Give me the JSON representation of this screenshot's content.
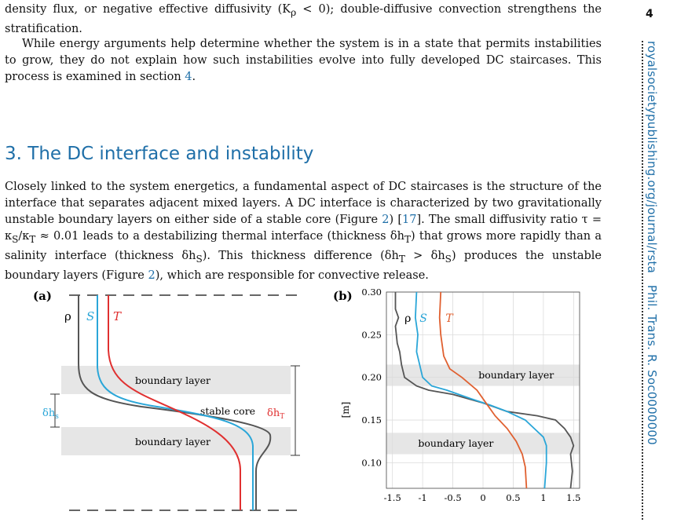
{
  "page_number": "4",
  "side_running_head": {
    "url": "royalsocietypublishing.org/journal/rsta",
    "journal": "Phil. Trans. R. Soc0000000"
  },
  "intro_paragraph": {
    "line1": "density flux, or negative effective diffusivity (K",
    "line1_sub": "ρ",
    "line1_end": " < 0); double-diffusive convection strengthens",
    "line2": "the stratification."
  },
  "energy_paragraph": {
    "text": "While energy arguments help determine whether the system is in a state that permits instabilities to grow, they do not explain how such instabilities evolve into fully developed DC staircases. This process is examined in section ",
    "section_ref": "4",
    "end": "."
  },
  "section": {
    "number": "3.",
    "title": "The DC interface and instability"
  },
  "interface_paragraph": {
    "part1": "Closely linked to the system energetics, a fundamental aspect of DC staircases is the structure of the interface that separates adjacent mixed layers. A DC interface is characterized by two gravitationally unstable boundary layers on either side of a stable core (Figure ",
    "fig_ref1": "2",
    "part2": ") [",
    "cite": "17",
    "part3": "]. The small diffusivity ratio τ = κ",
    "sub_S": "S",
    "part4": "/κ",
    "sub_T": "T",
    "part5": " ≈ 0.01 leads to a destabilizing thermal interface (thickness δh",
    "sub_T2": "T",
    "part6": ") that grows more rapidly than a salinity interface (thickness δh",
    "sub_S2": "S",
    "part7": "). This thickness difference (δh",
    "sub_T3": "T",
    "part8": " > δh",
    "sub_S3": "S",
    "part9": ") produces the unstable boundary layers (Figure ",
    "fig_ref2": "2",
    "part10": "), which are responsible for convective release."
  },
  "figure_a": {
    "panel_label": "(a)",
    "rho_label": "ρ",
    "s_label": "S",
    "t_label": "T",
    "boundary_layer_top": "boundary layer",
    "boundary_layer_bottom": "boundary layer",
    "stable_core": "stable core",
    "delta_hs": "δh",
    "delta_hs_sub": "s",
    "delta_ht": "δh",
    "delta_ht_sub": "T"
  },
  "figure_b": {
    "panel_label": "(b)",
    "rho_label": "ρ",
    "s_label": "S",
    "t_label": "T",
    "ylabel": "[m]",
    "boundary_layer_top": "boundary layer",
    "boundary_layer_bottom": "boundary layer",
    "yticks": [
      "0.30",
      "0.25",
      "0.20",
      "0.15",
      "0.10"
    ],
    "xticks": [
      "-1.5",
      "-1",
      "-0.5",
      "0",
      "0.5",
      "1",
      "1.5"
    ]
  },
  "chart_data": {
    "type": "line",
    "xlim": [
      -1.6,
      1.6
    ],
    "ylim": [
      0.07,
      0.3
    ],
    "grid": true,
    "bands_y": [
      [
        0.19,
        0.215
      ],
      [
        0.11,
        0.135
      ]
    ],
    "series": [
      {
        "name": "ρ",
        "color": "#555555",
        "points": [
          [
            -1.45,
            0.3
          ],
          [
            -1.45,
            0.28
          ],
          [
            -1.4,
            0.27
          ],
          [
            -1.45,
            0.26
          ],
          [
            -1.42,
            0.24
          ],
          [
            -1.38,
            0.23
          ],
          [
            -1.35,
            0.215
          ],
          [
            -1.3,
            0.2
          ],
          [
            -1.1,
            0.19
          ],
          [
            -0.9,
            0.185
          ],
          [
            -0.5,
            0.18
          ],
          [
            0.0,
            0.17
          ],
          [
            0.4,
            0.16
          ],
          [
            0.9,
            0.155
          ],
          [
            1.2,
            0.15
          ],
          [
            1.35,
            0.14
          ],
          [
            1.45,
            0.13
          ],
          [
            1.5,
            0.12
          ],
          [
            1.45,
            0.11
          ],
          [
            1.48,
            0.09
          ],
          [
            1.45,
            0.07
          ]
        ]
      },
      {
        "name": "S",
        "color": "#2aa6d8",
        "points": [
          [
            -1.1,
            0.3
          ],
          [
            -1.12,
            0.27
          ],
          [
            -1.08,
            0.25
          ],
          [
            -1.1,
            0.23
          ],
          [
            -1.05,
            0.215
          ],
          [
            -1.0,
            0.2
          ],
          [
            -0.85,
            0.19
          ],
          [
            -0.6,
            0.185
          ],
          [
            -0.2,
            0.175
          ],
          [
            0.1,
            0.168
          ],
          [
            0.4,
            0.16
          ],
          [
            0.7,
            0.15
          ],
          [
            0.85,
            0.14
          ],
          [
            1.0,
            0.13
          ],
          [
            1.05,
            0.12
          ],
          [
            1.05,
            0.1
          ],
          [
            1.02,
            0.07
          ]
        ]
      },
      {
        "name": "T",
        "color": "#e06030",
        "points": [
          [
            -0.7,
            0.3
          ],
          [
            -0.72,
            0.27
          ],
          [
            -0.7,
            0.25
          ],
          [
            -0.65,
            0.225
          ],
          [
            -0.55,
            0.21
          ],
          [
            -0.35,
            0.2
          ],
          [
            -0.1,
            0.185
          ],
          [
            0.05,
            0.17
          ],
          [
            0.2,
            0.155
          ],
          [
            0.4,
            0.14
          ],
          [
            0.55,
            0.125
          ],
          [
            0.65,
            0.11
          ],
          [
            0.7,
            0.095
          ],
          [
            0.72,
            0.07
          ]
        ]
      }
    ]
  }
}
